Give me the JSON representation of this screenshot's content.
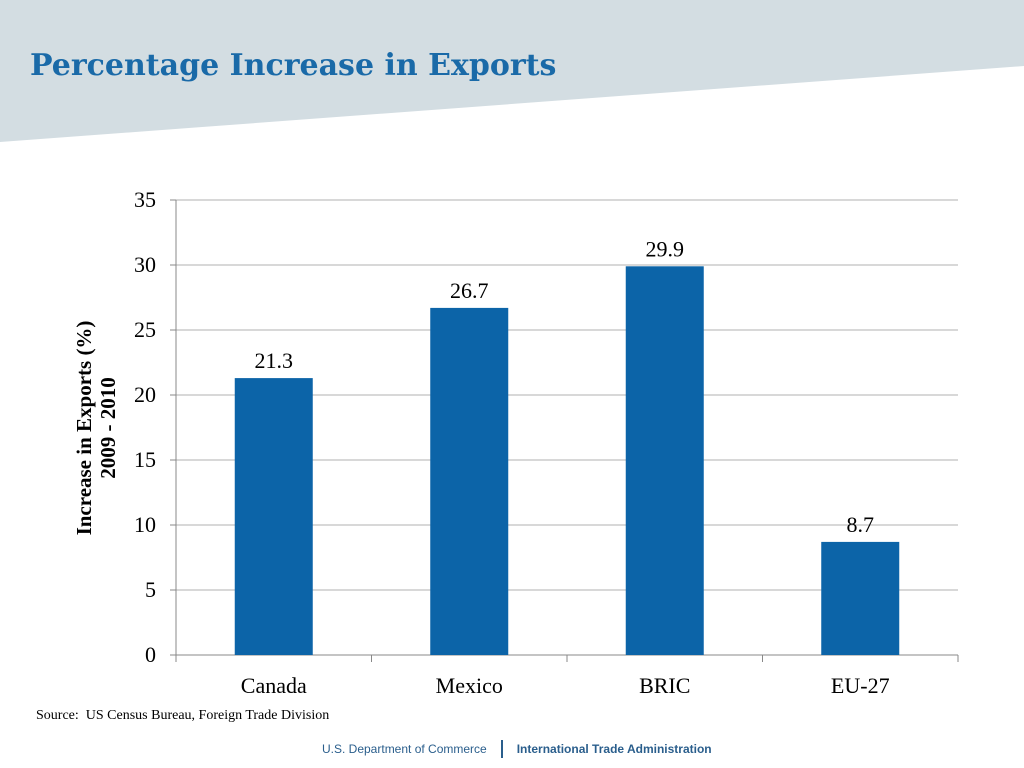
{
  "slide": {
    "title": "Percentage Increase in Exports",
    "source": "Source:  US Census Bureau, Foreign Trade Division",
    "footer_left": "U.S. Department of Commerce",
    "footer_right": "International Trade Administration"
  },
  "colors": {
    "banner": "#d3dde2",
    "title": "#1a6aa8",
    "bar": "#0c64a8",
    "gridline": "#b0b0b0",
    "footer_text": "#2a5e8c"
  },
  "chart_data": {
    "type": "bar",
    "categories": [
      "Canada",
      "Mexico",
      "BRIC",
      "EU-27"
    ],
    "values": [
      21.3,
      26.7,
      29.9,
      8.7
    ],
    "data_labels": [
      "21.3",
      "26.7",
      "29.9",
      "8.7"
    ],
    "ylabel_lines": [
      "Increase in Exports (%)",
      "2009 - 2010"
    ],
    "ylim": [
      0,
      35
    ],
    "yticks": [
      0,
      5,
      10,
      15,
      20,
      25,
      30,
      35
    ],
    "grid": true,
    "legend": "none"
  }
}
